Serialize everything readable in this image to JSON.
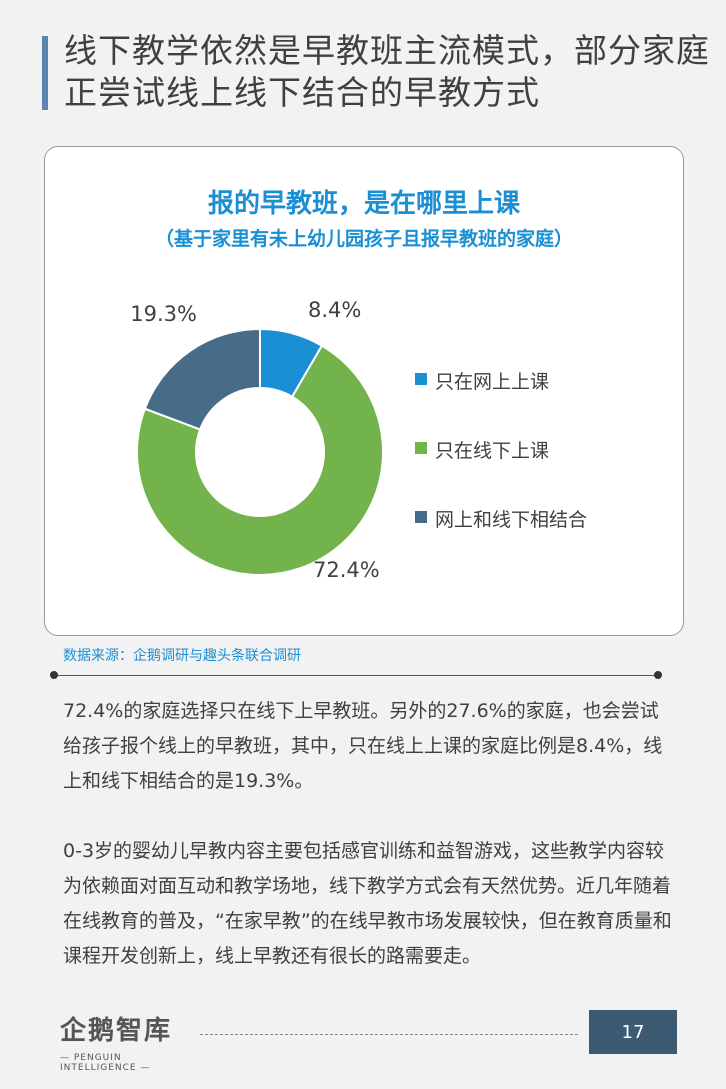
{
  "header": {
    "title": "线下教学依然是早教班主流模式，部分家庭正尝试线上线下结合的早教方式"
  },
  "chart_data": {
    "type": "pie",
    "title": "报的早教班，是在哪里上课",
    "subtitle": "（基于家里有未上幼儿园孩子且报早教班的家庭）",
    "categories": [
      "只在网上上课",
      "只在线下上课",
      "网上和线下相结合"
    ],
    "values": [
      8.4,
      72.4,
      19.3
    ],
    "labels": [
      "8.4%",
      "72.4%",
      "19.3%"
    ],
    "colors": [
      "#1a8fd3",
      "#72b44b",
      "#476c88"
    ],
    "legend_position": "right",
    "donut": true
  },
  "source": "数据来源：企鹅调研与趣头条联合调研",
  "body": {
    "paragraphs": [
      "72.4%的家庭选择只在线下上早教班。另外的27.6%的家庭，也会尝试给孩子报个线上的早教班，其中，只在线上上课的家庭比例是8.4%，线上和线下相结合的是19.3%。",
      "0-3岁的婴幼儿早教内容主要包括感官训练和益智游戏，这些教学内容较为依赖面对面互动和教学场地，线下教学方式会有天然优势。近几年随着在线教育的普及，“在家早教”的在线早教市场发展较快，但在教育质量和课程开发创新上，线上早教还有很长的路需要走。"
    ]
  },
  "footer": {
    "logo_text": "企鹅智库",
    "logo_sub": "— PENGUIN INTELLIGENCE —",
    "page_number": "17"
  }
}
